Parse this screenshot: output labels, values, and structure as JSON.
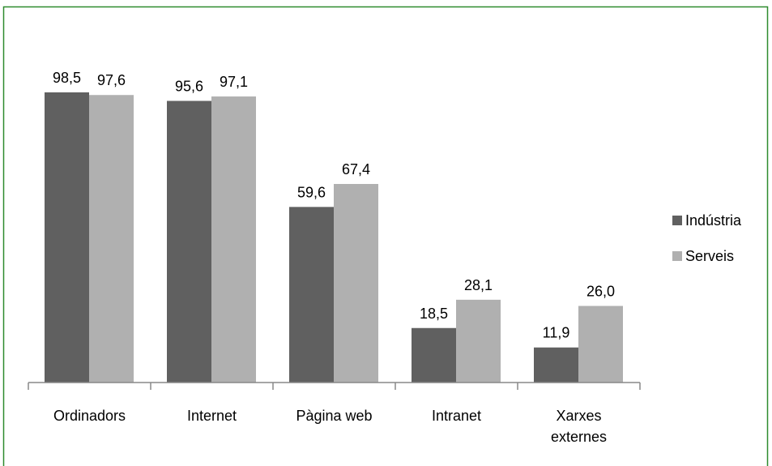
{
  "chart_data": {
    "type": "bar",
    "categories": [
      "Ordinadors",
      "Internet",
      "Pàgina web",
      "Intranet",
      "Xarxes externes"
    ],
    "series": [
      {
        "name": "Indústria",
        "color": "#606060",
        "values": [
          98.5,
          95.6,
          59.6,
          18.5,
          11.9
        ],
        "value_labels": [
          "98,5",
          "95,6",
          "59,6",
          "18,5",
          "11,9"
        ]
      },
      {
        "name": "Serveis",
        "color": "#b0b0b0",
        "values": [
          97.6,
          97.1,
          67.4,
          28.1,
          26.0
        ],
        "value_labels": [
          "97,6",
          "97,1",
          "67,4",
          "28,1",
          "26,0"
        ]
      }
    ],
    "ylim": [
      0,
      100
    ],
    "legend": "right"
  }
}
